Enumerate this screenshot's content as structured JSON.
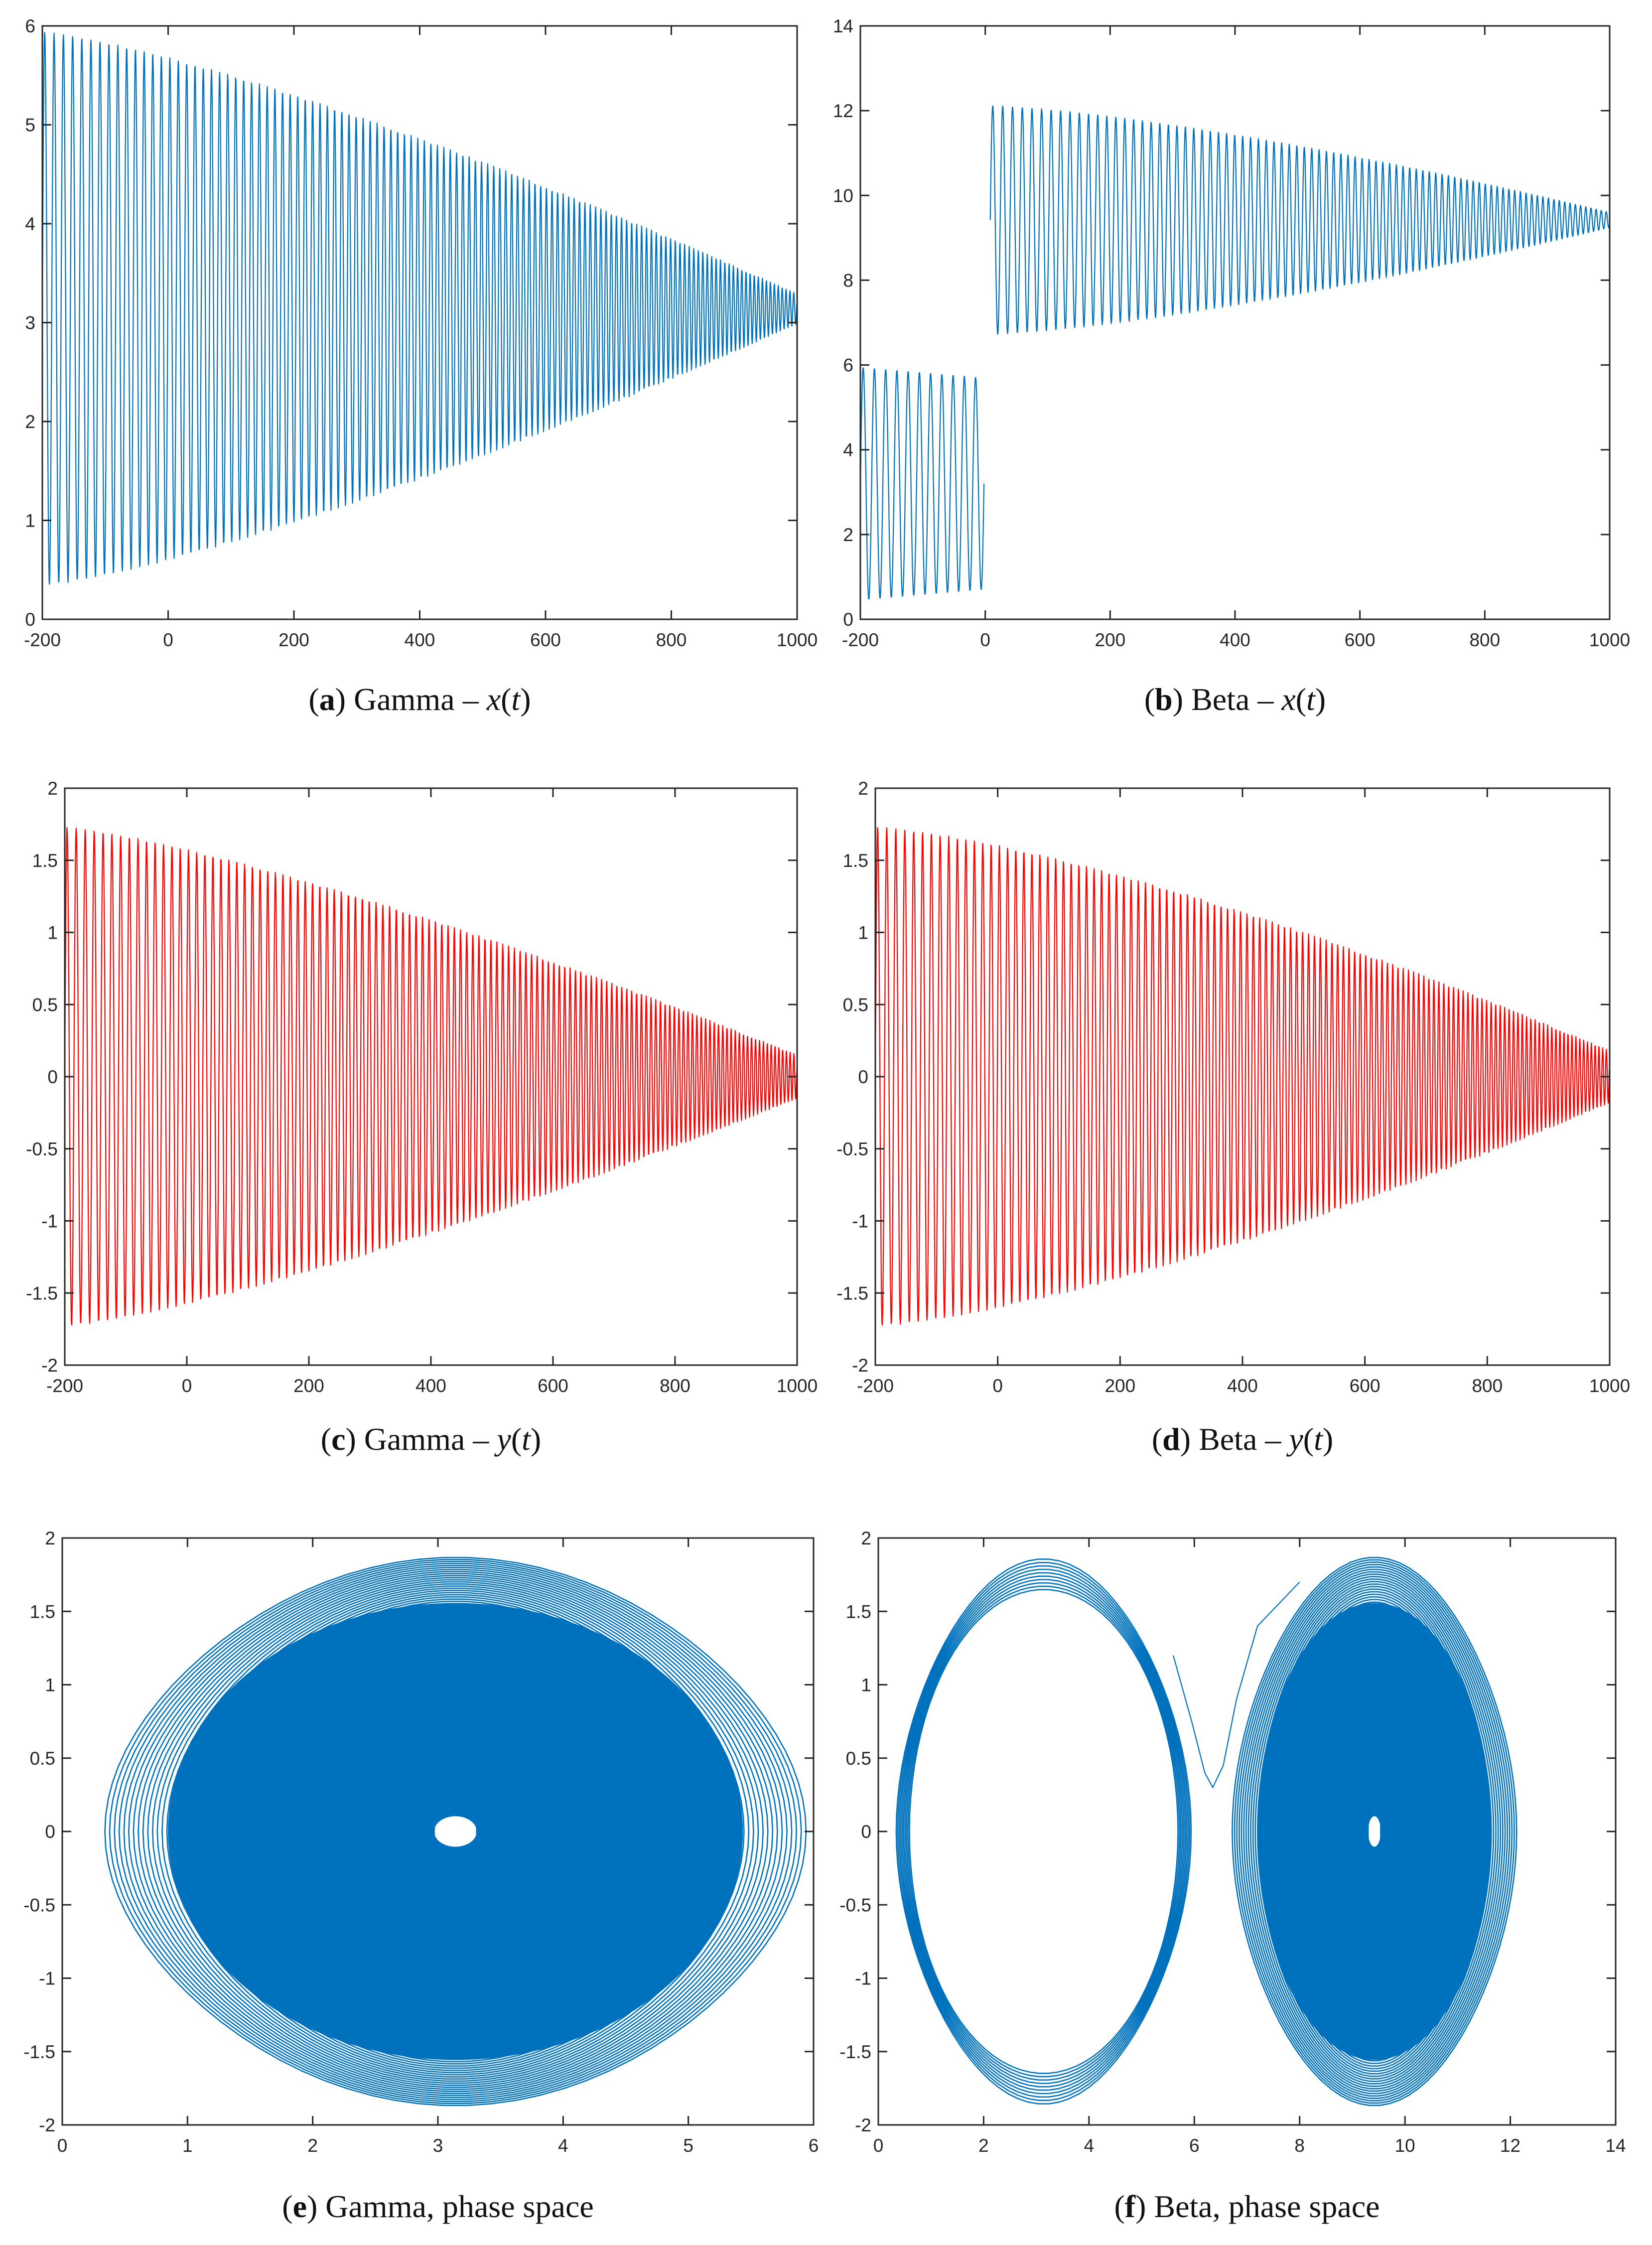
{
  "figure": {
    "colors": {
      "blue": "#0072BD",
      "red": "#FF0000",
      "axis": "#262626"
    }
  },
  "chart_data": [
    {
      "id": "a",
      "type": "line",
      "color": "#0072BD",
      "caption": {
        "letter": "a",
        "pre": ") Gamma – ",
        "var": "x",
        "open": "(",
        "arg": "t",
        "close": ")"
      },
      "series": [
        {
          "name": "x(t)",
          "kind": "oscillation",
          "x_start": -200,
          "x_end": 1000,
          "center": 3.14,
          "amp_start": 2.8,
          "amp_end": 0.15,
          "period_start": 15,
          "period_end": 6,
          "shrink_power": 1.3
        }
      ],
      "xlim": [
        -200,
        1000
      ],
      "ylim": [
        0,
        6
      ],
      "xticks": [
        -200,
        0,
        200,
        400,
        600,
        800,
        1000
      ],
      "yticks": [
        0,
        1,
        2,
        3,
        4,
        5,
        6
      ]
    },
    {
      "id": "b",
      "type": "line",
      "color": "#0072BD",
      "caption": {
        "letter": "b",
        "pre": ") Beta – ",
        "var": "x",
        "open": "(",
        "arg": "t",
        "close": ")"
      },
      "series": [
        {
          "name": "x(t) before jump",
          "kind": "oscillation",
          "x_start": -200,
          "x_end": -2,
          "center": 3.2,
          "amp_start": 2.75,
          "amp_end": 2.5,
          "period_start": 18,
          "period_end": 18,
          "shrink_power": 1
        },
        {
          "name": "x(t) after jump",
          "kind": "oscillation",
          "x_start": 8,
          "x_end": 1000,
          "center": 9.42,
          "amp_start": 2.7,
          "amp_end": 0.18,
          "period_start": 16,
          "period_end": 8,
          "shrink_power": 1.4
        }
      ],
      "xlim": [
        -200,
        1000
      ],
      "ylim": [
        0,
        14
      ],
      "xticks": [
        -200,
        0,
        200,
        400,
        600,
        800,
        1000
      ],
      "yticks": [
        0,
        2,
        4,
        6,
        8,
        10,
        12,
        14
      ]
    },
    {
      "id": "c",
      "type": "line",
      "color": "#FF0000",
      "caption": {
        "letter": "c",
        "pre": ") Gamma – ",
        "var": "y",
        "open": "(",
        "arg": "t",
        "close": ")"
      },
      "series": [
        {
          "name": "y(t)",
          "kind": "oscillation",
          "x_start": -200,
          "x_end": 1000,
          "center": 0,
          "amp_start": 1.73,
          "amp_end": 0.15,
          "period_start": 15,
          "period_end": 6,
          "shrink_power": 1.3
        }
      ],
      "xlim": [
        -200,
        1000
      ],
      "ylim": [
        -2,
        2
      ],
      "xticks": [
        -200,
        0,
        200,
        400,
        600,
        800,
        1000
      ],
      "yticks": [
        -2,
        -1.5,
        -1,
        -0.5,
        0,
        0.5,
        1,
        1.5,
        2
      ]
    },
    {
      "id": "d",
      "type": "line",
      "color": "#FF0000",
      "caption": {
        "letter": "d",
        "pre": ") Beta – ",
        "var": "y",
        "open": "(",
        "arg": "t",
        "close": ")"
      },
      "series": [
        {
          "name": "y(t)",
          "kind": "oscillation",
          "x_start": -200,
          "x_end": 1000,
          "center": 0,
          "amp_start": 1.73,
          "amp_end": 0.18,
          "period_start": 15,
          "period_end": 6,
          "shrink_power": 1.4
        }
      ],
      "xlim": [
        -200,
        1000
      ],
      "ylim": [
        -2,
        2
      ],
      "xticks": [
        -200,
        0,
        200,
        400,
        600,
        800,
        1000
      ],
      "yticks": [
        -2,
        -1.5,
        -1,
        -0.5,
        0,
        0.5,
        1,
        1.5,
        2
      ]
    },
    {
      "id": "e",
      "type": "line",
      "color": "#0072BD",
      "caption": {
        "letter": "e",
        "pre": ") Gamma, phase space",
        "var": "",
        "open": "",
        "arg": "",
        "close": ""
      },
      "series": [
        {
          "name": "phase orbit",
          "kind": "phase",
          "cx": 3.14,
          "r_inner_x": 0.17,
          "r_outer_x": 2.8,
          "ymax": 1.73,
          "loops": 70
        }
      ],
      "xlim": [
        0,
        6
      ],
      "ylim": [
        -2,
        2
      ],
      "xticks": [
        0,
        1,
        2,
        3,
        4,
        5,
        6
      ],
      "yticks": [
        -2,
        -1.5,
        -1,
        -0.5,
        0,
        0.5,
        1,
        1.5,
        2
      ]
    },
    {
      "id": "f",
      "type": "line",
      "color": "#0072BD",
      "caption": {
        "letter": "f",
        "pre": ") Beta, phase space",
        "var": "",
        "open": "",
        "arg": "",
        "close": ""
      },
      "series": [
        {
          "name": "left orbit",
          "kind": "phase",
          "cx": 3.14,
          "r_inner_x": 2.55,
          "r_outer_x": 2.8,
          "ymax": 1.72,
          "loops": 10
        },
        {
          "name": "transition",
          "kind": "path",
          "points": [
            [
              5.6,
              1.2
            ],
            [
              5.95,
              0.75
            ],
            [
              6.2,
              0.4
            ],
            [
              6.35,
              0.3
            ],
            [
              6.55,
              0.45
            ],
            [
              6.8,
              0.9
            ],
            [
              7.2,
              1.4
            ],
            [
              8.0,
              1.7
            ]
          ]
        },
        {
          "name": "right orbit",
          "kind": "phase",
          "cx": 9.42,
          "r_inner_x": 0.12,
          "r_outer_x": 2.7,
          "ymax": 1.73,
          "loops": 60
        }
      ],
      "xlim": [
        0,
        14
      ],
      "ylim": [
        -2,
        2
      ],
      "xticks": [
        0,
        2,
        4,
        6,
        8,
        10,
        12,
        14
      ],
      "yticks": [
        -2,
        -1.5,
        -1,
        -0.5,
        0,
        0.5,
        1,
        1.5,
        2
      ]
    }
  ]
}
